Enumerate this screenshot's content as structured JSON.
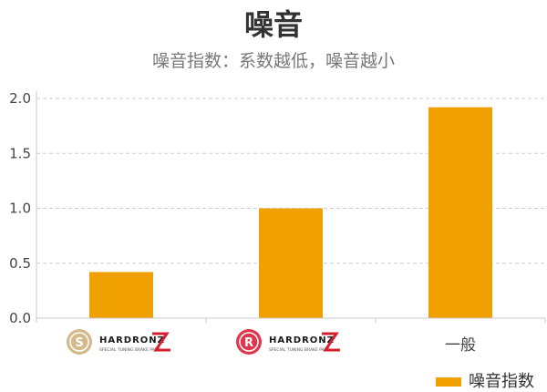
{
  "chart_data": {
    "type": "bar",
    "title": "噪音",
    "subtitle": "噪音指数：系数越低，噪音越小",
    "categories": [
      {
        "kind": "logo",
        "badge": "S",
        "brand": "HARDRONZ",
        "tagline": "SPECIAL TUNING BRAKE PADS",
        "badge_color": "#d4b98a"
      },
      {
        "kind": "logo",
        "badge": "R",
        "brand": "HARDRONZ",
        "tagline": "SPECIAL TUNING BRAKE PADS",
        "badge_color": "#e0354b"
      },
      {
        "kind": "text",
        "label": "一般"
      }
    ],
    "series": [
      {
        "name": "噪音指数",
        "color": "#f0a000",
        "values": [
          0.42,
          1.0,
          1.92
        ]
      }
    ],
    "ylim": [
      0,
      2.0
    ],
    "yticks": [
      "0.0",
      "0.5",
      "1.0",
      "1.5",
      "2.0"
    ],
    "grid": true,
    "legend_position": "bottom-right"
  }
}
